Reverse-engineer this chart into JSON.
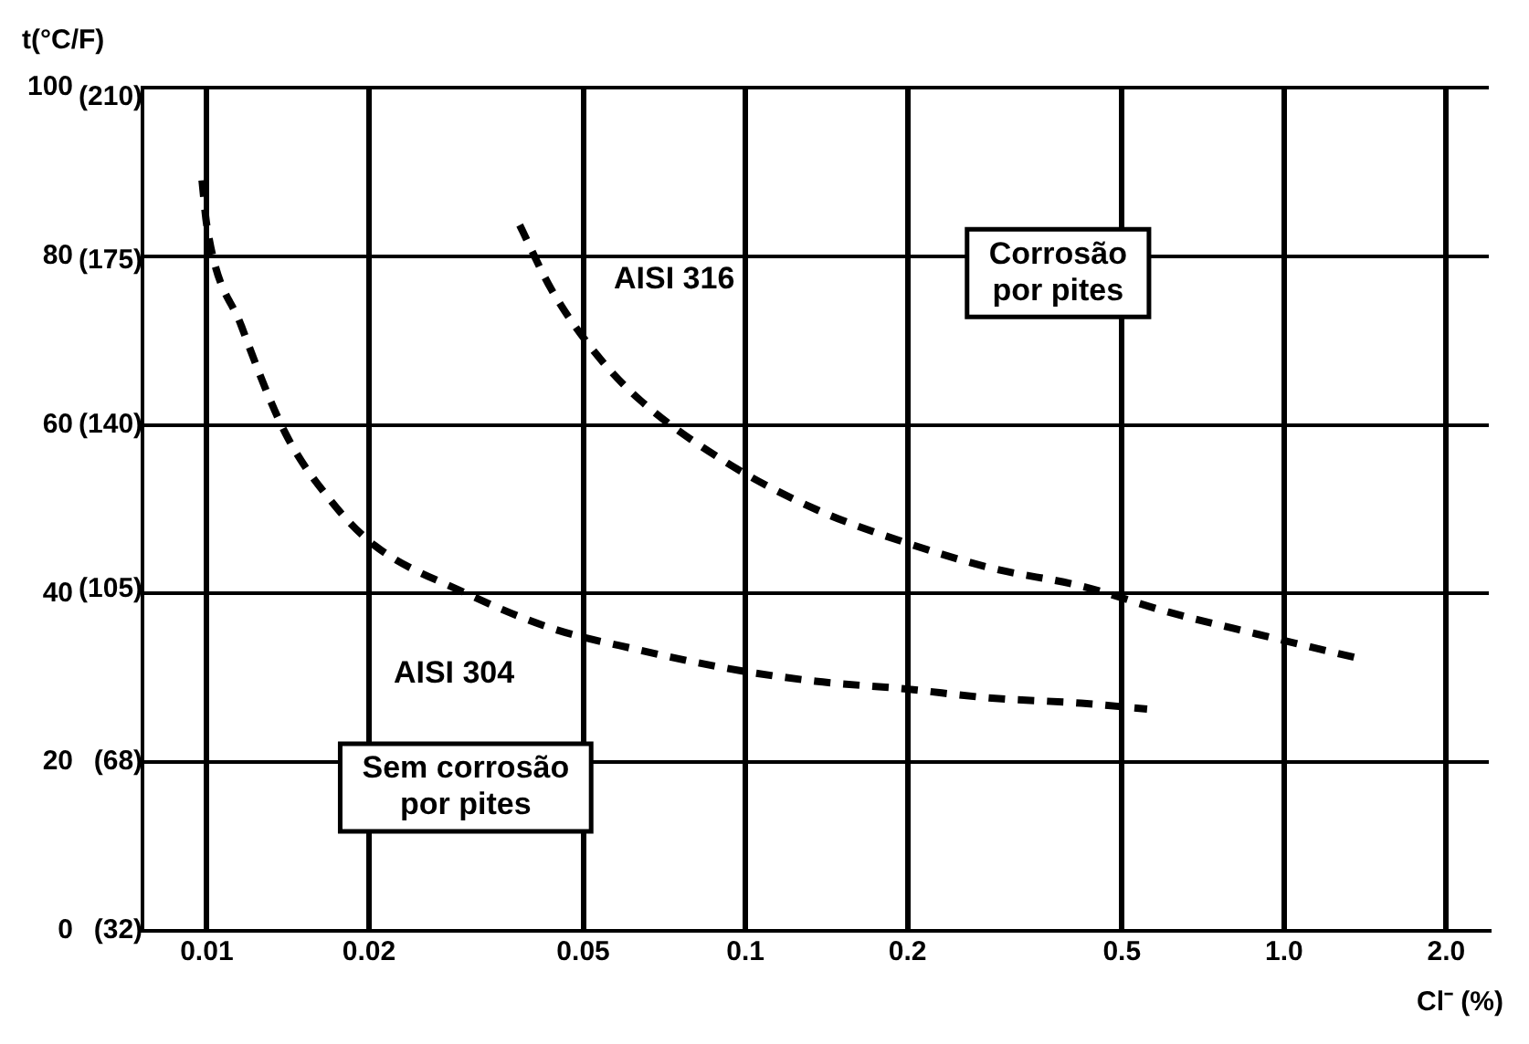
{
  "chart_data": {
    "type": "line",
    "xlabel": "Cl⁻ (%)",
    "ylabel": "t(°C/F)",
    "log": "x",
    "xlim": [
      0.0076,
      2.4
    ],
    "ylim": [
      0,
      100
    ],
    "xticks": [
      0.01,
      0.02,
      0.05,
      0.1,
      0.2,
      0.5,
      {
        "value": 1,
        "label": "1.0"
      },
      {
        "value": 2,
        "label": "2.0"
      }
    ],
    "yticks": [
      0,
      20,
      40,
      60,
      80,
      100
    ],
    "y2lim": [
      32,
      212
    ],
    "y2ticks": [
      {
        "value": 32,
        "label": "(32)"
      },
      {
        "value": 68,
        "label": "(68)"
      },
      {
        "value": 105,
        "label": "(105)"
      },
      {
        "value": 140,
        "label": "(140)"
      },
      {
        "value": 175,
        "label": "(175)"
      },
      {
        "value": 210,
        "label": "(210)"
      }
    ],
    "grid": true,
    "legend": false,
    "line_style": "dashed",
    "marker": "none",
    "series": [
      {
        "name": "AISI 304",
        "color": "#000000",
        "x": [
          0.0098,
          0.01,
          0.0116,
          0.014,
          0.017,
          0.0205,
          0.0299,
          0.0436,
          0.0636,
          0.093,
          0.135,
          0.197,
          0.287,
          0.42,
          0.557
        ],
        "values": [
          89,
          83.7,
          71.7,
          59,
          51,
          45.7,
          40.2,
          35.9,
          33.3,
          31.1,
          29.6,
          28.7,
          27.6,
          27,
          26.3
        ]
      },
      {
        "name": "AISI 316",
        "color": "#000000",
        "x": [
          0.0381,
          0.0436,
          0.0527,
          0.0636,
          0.093,
          0.135,
          0.197,
          0.287,
          0.42,
          0.61,
          0.89,
          1.4
        ],
        "values": [
          83.7,
          76.1,
          68.5,
          63,
          55.4,
          50,
          46.1,
          43,
          40.9,
          37.8,
          35.2,
          32.2
        ]
      }
    ],
    "annotations": [
      "Corrosão\npor pites",
      "Sem corrosão\npor pites"
    ]
  }
}
